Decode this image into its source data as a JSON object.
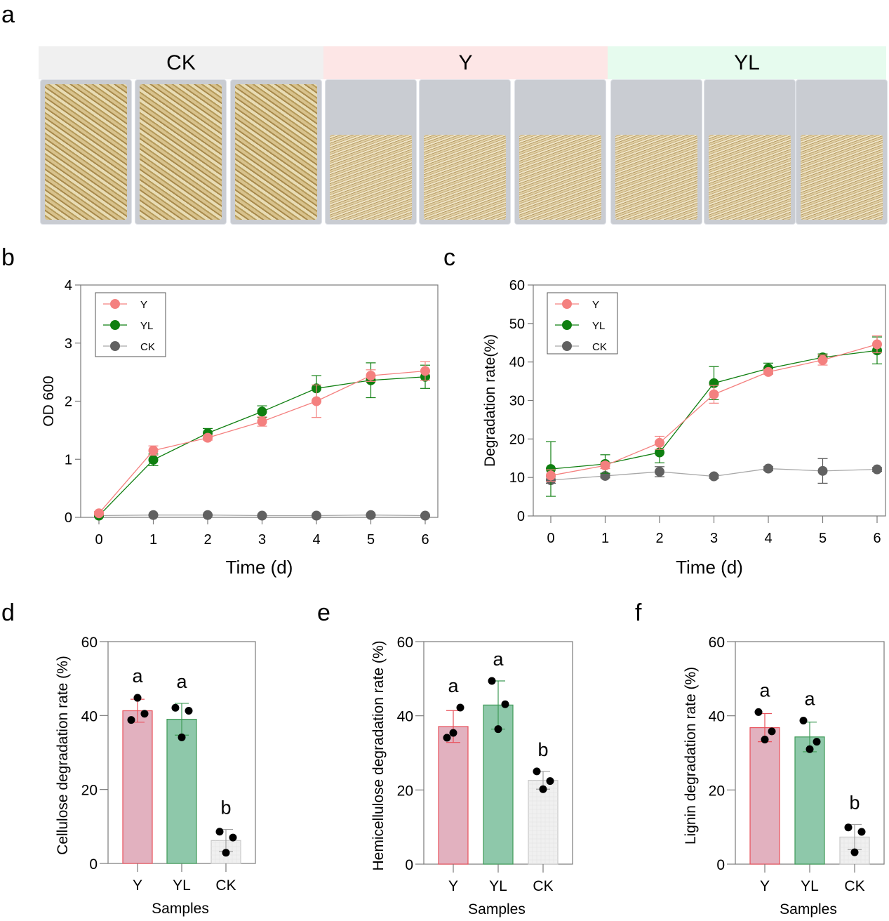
{
  "panel_a": {
    "letter": "a",
    "groups": [
      {
        "label": "CK",
        "band_color": "#f0f0f0",
        "straw": "dense-chopped"
      },
      {
        "label": "Y",
        "band_color": "#fde6e6",
        "straw": "degraded-fibrous"
      },
      {
        "label": "YL",
        "band_color": "#e6fbee",
        "straw": "degraded-fibrous"
      }
    ],
    "replicates_per_group": 3
  },
  "colors": {
    "Y": "#f4807f",
    "YL": "#0f7f10",
    "CK": "#616161",
    "Y_bar": "#e2b1bf",
    "Y_bar_edge": "#e8505a",
    "YL_bar": "#8ec8aa",
    "YL_bar_edge": "#3e9a56",
    "CK_bar": "#f0f0f0",
    "CK_bar_edge": "#c8c8c8"
  },
  "chart_data": [
    {
      "id": "b",
      "letter": "b",
      "type": "line",
      "title": "",
      "xlabel": "Time (d)",
      "ylabel": "OD 600",
      "x": [
        0,
        1,
        2,
        3,
        4,
        5,
        6
      ],
      "xlim": [
        0,
        6
      ],
      "ylim": [
        0,
        4
      ],
      "yticks": [
        0,
        1,
        2,
        3,
        4
      ],
      "legend": "top-left",
      "grid": false,
      "series": [
        {
          "name": "Y",
          "values": [
            0.07,
            1.15,
            1.37,
            1.65,
            2.0,
            2.44,
            2.52
          ],
          "err": [
            0.03,
            0.08,
            0.04,
            0.08,
            0.28,
            0.1,
            0.16
          ]
        },
        {
          "name": "YL",
          "values": [
            0.03,
            0.99,
            1.45,
            1.82,
            2.22,
            2.36,
            2.42
          ],
          "err": [
            0.02,
            0.1,
            0.08,
            0.1,
            0.22,
            0.3,
            0.2
          ]
        },
        {
          "name": "CK",
          "values": [
            0.03,
            0.04,
            0.04,
            0.03,
            0.03,
            0.04,
            0.03
          ],
          "err": [
            0.01,
            0.01,
            0.01,
            0.01,
            0.01,
            0.01,
            0.01
          ]
        }
      ]
    },
    {
      "id": "c",
      "letter": "c",
      "type": "line",
      "title": "",
      "xlabel": "Time (d)",
      "ylabel": "Degradation rate(%)",
      "x": [
        0,
        1,
        2,
        3,
        4,
        5,
        6
      ],
      "xlim": [
        0,
        6
      ],
      "ylim": [
        0,
        60
      ],
      "yticks": [
        0,
        10,
        20,
        30,
        40,
        50,
        60
      ],
      "legend": "top-left",
      "grid": false,
      "series": [
        {
          "name": "Y",
          "values": [
            10.5,
            13.1,
            19.0,
            31.6,
            37.4,
            40.5,
            44.6
          ],
          "err": [
            1.5,
            0.8,
            1.7,
            2.3,
            0.6,
            1.3,
            2.2
          ]
        },
        {
          "name": "YL",
          "values": [
            12.2,
            13.5,
            16.5,
            34.5,
            38.3,
            41.2,
            43.0
          ],
          "err": [
            7.1,
            2.4,
            2.7,
            4.3,
            1.4,
            0.9,
            3.5
          ]
        },
        {
          "name": "CK",
          "values": [
            9.3,
            10.4,
            11.5,
            10.3,
            12.3,
            11.7,
            12.1
          ],
          "err": [
            0.8,
            0.5,
            1.3,
            0.5,
            0.5,
            3.2,
            0.5
          ]
        }
      ]
    },
    {
      "id": "d",
      "letter": "d",
      "type": "bar",
      "title": "",
      "xlabel": "Samples",
      "ylabel": "Cellulose degradation rate (%)",
      "categories": [
        "Y",
        "YL",
        "CK"
      ],
      "values": [
        41.3,
        39.0,
        6.2
      ],
      "err": [
        3.1,
        4.3,
        3.0
      ],
      "points": [
        [
          38.8,
          40.5,
          44.8
        ],
        [
          42.1,
          41.3,
          34.1
        ],
        [
          8.6,
          7.0,
          2.9
        ]
      ],
      "letters": [
        "a",
        "a",
        "b"
      ],
      "ylim": [
        0,
        60
      ],
      "yticks": [
        0,
        20,
        40,
        60
      ]
    },
    {
      "id": "e",
      "letter": "e",
      "type": "bar",
      "title": "",
      "xlabel": "Samples",
      "ylabel": "Hemicellulose degradation rate (%)",
      "categories": [
        "Y",
        "YL",
        "CK"
      ],
      "values": [
        37.1,
        42.9,
        22.6
      ],
      "err": [
        4.3,
        6.5,
        2.4
      ],
      "points": [
        [
          34.1,
          42.2,
          35.4
        ],
        [
          49.4,
          43.1,
          36.4
        ],
        [
          25.0,
          22.4,
          20.2
        ]
      ],
      "letters": [
        "a",
        "a",
        "b"
      ],
      "ylim": [
        0,
        60
      ],
      "yticks": [
        0,
        20,
        40,
        60
      ]
    },
    {
      "id": "f",
      "letter": "f",
      "type": "bar",
      "title": "",
      "xlabel": "Samples",
      "ylabel": "Lignin degradation rate (%)",
      "categories": [
        "Y",
        "YL",
        "CK"
      ],
      "values": [
        36.8,
        34.3,
        7.3
      ],
      "err": [
        3.8,
        4.0,
        3.4
      ],
      "points": [
        [
          41.0,
          35.8,
          33.6
        ],
        [
          38.7,
          33.0,
          31.0
        ],
        [
          9.9,
          8.7,
          3.2
        ]
      ],
      "letters": [
        "a",
        "a",
        "b"
      ],
      "ylim": [
        0,
        60
      ],
      "yticks": [
        0,
        20,
        40,
        60
      ]
    }
  ]
}
